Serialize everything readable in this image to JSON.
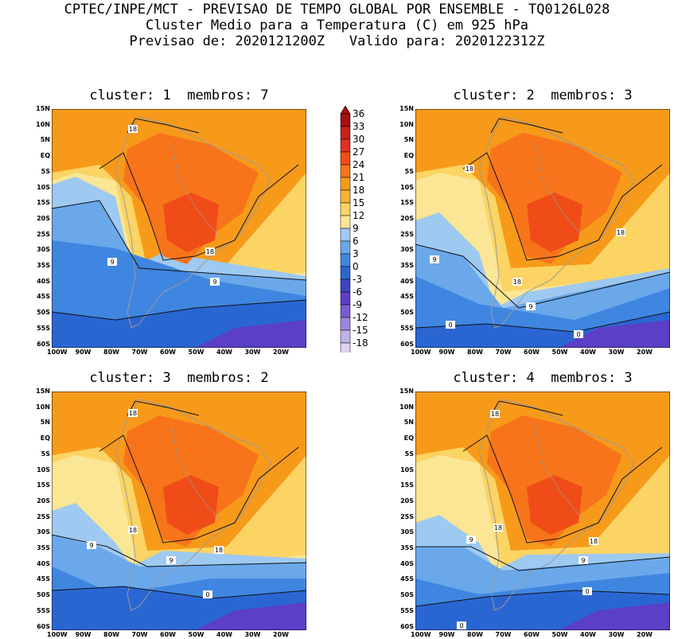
{
  "header": {
    "line1": "CPTEC/INPE/MCT - PREVISAO DE TEMPO GLOBAL POR ENSEMBLE - TQ0126L028",
    "line2": "Cluster Medio para a Temperatura (C) em 925 hPa",
    "line3": "Previsao de: 2020121200Z   Valido para: 2020122312Z"
  },
  "panels": [
    {
      "title": "cluster: 1  membros: 7",
      "contour_labels": [
        "18",
        "18",
        "9",
        "9"
      ]
    },
    {
      "title": "cluster: 2  membros: 3",
      "contour_labels": [
        "18",
        "18",
        "9",
        "18",
        "9",
        "0",
        "0"
      ]
    },
    {
      "title": "cluster: 3  membros: 2",
      "contour_labels": [
        "18",
        "18",
        "9",
        "18",
        "9",
        "0"
      ]
    },
    {
      "title": "cluster: 4  membros: 3",
      "contour_labels": [
        "18",
        "18",
        "9",
        "18",
        "9",
        "0",
        "0"
      ]
    }
  ],
  "axes": {
    "lat_ticks": [
      "15N",
      "10N",
      "5N",
      "EQ",
      "5S",
      "10S",
      "15S",
      "20S",
      "25S",
      "30S",
      "35S",
      "40S",
      "45S",
      "50S",
      "55S",
      "60S"
    ],
    "lon_ticks": [
      "100W",
      "90W",
      "80W",
      "70W",
      "60W",
      "50W",
      "40W",
      "30W",
      "20W"
    ]
  },
  "colorbar": {
    "labels": [
      "36",
      "33",
      "30",
      "27",
      "24",
      "21",
      "18",
      "15",
      "12",
      "9",
      "6",
      "3",
      "0",
      "-3",
      "-6",
      "-9",
      "-12",
      "-15",
      "-18"
    ],
    "colors": [
      "#a50f0f",
      "#c8201d",
      "#e0321e",
      "#f04c18",
      "#f7741b",
      "#f79a1a",
      "#f7b336",
      "#fbd464",
      "#fae695",
      "#9ec9f0",
      "#6aa8ea",
      "#3f86e0",
      "#2a66d2",
      "#3c44c0",
      "#5b3fc7",
      "#7a5ad1",
      "#9e86de",
      "#c1b3ea",
      "#ddd3f3"
    ]
  }
}
